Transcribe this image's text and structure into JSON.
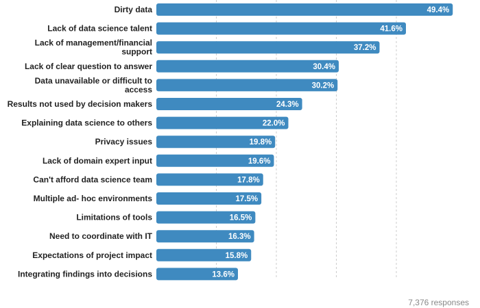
{
  "chart_data": {
    "type": "bar",
    "orientation": "horizontal",
    "categories": [
      "Dirty data",
      "Lack of data science talent",
      [
        "Lack of management/financial",
        "support"
      ],
      "Lack of clear question to answer",
      [
        "Data unavailable or difficult to",
        "access"
      ],
      "Results not used by decision makers",
      "Explaining data science to others",
      "Privacy issues",
      "Lack of domain expert input",
      "Can't afford data science team",
      "Multiple ad- hoc environments",
      "Limitations of tools",
      "Need to coordinate with IT",
      "Expectations of project impact",
      "Integrating findings into decisions"
    ],
    "values": [
      49.4,
      41.6,
      37.2,
      30.4,
      30.2,
      24.3,
      22.0,
      19.8,
      19.6,
      17.8,
      17.5,
      16.5,
      16.3,
      15.8,
      13.6
    ],
    "value_labels": [
      "49.4%",
      "41.6%",
      "37.2%",
      "30.4%",
      "30.2%",
      "24.3%",
      "22.0%",
      "19.8%",
      "19.6%",
      "17.8%",
      "17.5%",
      "16.5%",
      "16.3%",
      "15.8%",
      "13.6%"
    ],
    "xlim": [
      0,
      50
    ],
    "gridlines_x": [
      10,
      20,
      30,
      40
    ],
    "grid": "vertical dashed",
    "bar_color": "#3f8ac0",
    "title": "",
    "xlabel": "",
    "ylabel": ""
  },
  "footnote": "7,376 responses"
}
